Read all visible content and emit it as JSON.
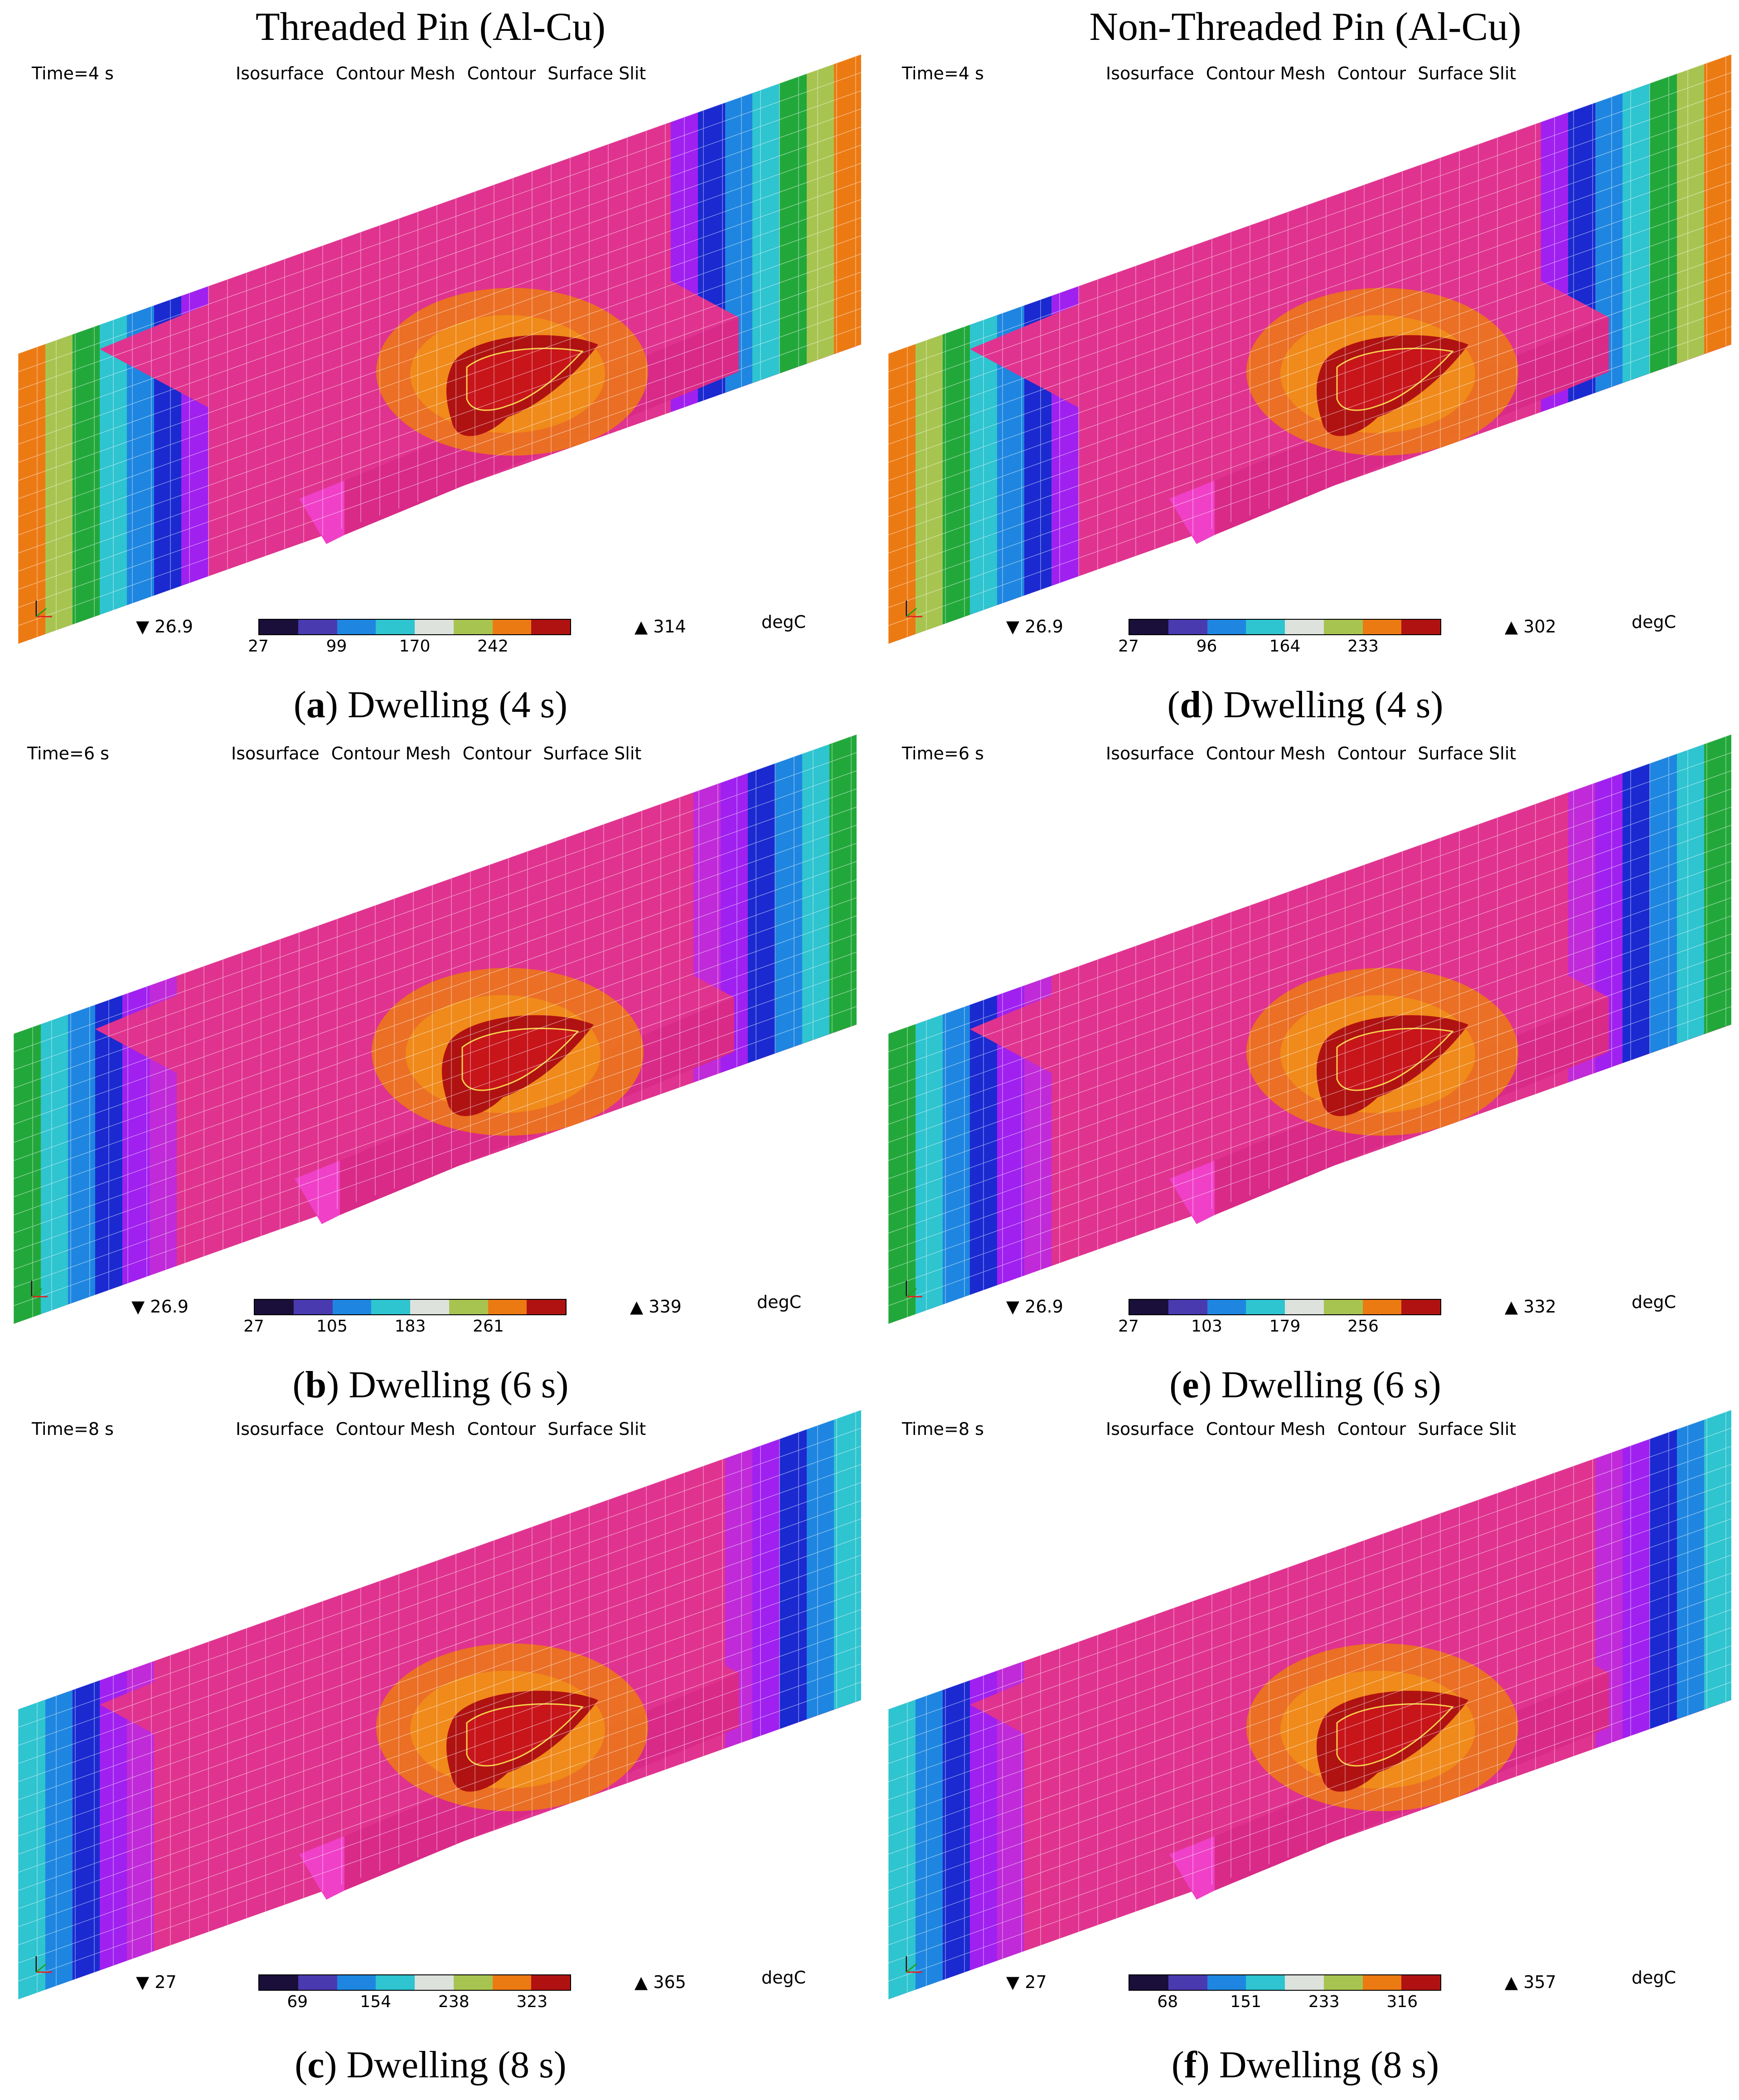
{
  "columns": {
    "left_title": "Threaded Pin (Al-Cu)",
    "right_title": "Non-Threaded Pin (Al-Cu)"
  },
  "toolbar_items": [
    "Isosurface",
    "Contour Mesh",
    "Contour",
    "Surface Slit"
  ],
  "unit": "degC",
  "legend_colors": [
    "#1a0f3a",
    "#4a3ab0",
    "#1e86e0",
    "#2ec4d0",
    "#dde2dc",
    "#a8c450",
    "#ec7a12",
    "#b01212"
  ],
  "panels": {
    "a": {
      "time": "Time=4 s",
      "min": "26.9",
      "max": "314",
      "ticks": [
        "27",
        "99",
        "170",
        "242"
      ],
      "caption_letter": "a",
      "caption_text": ") Dwelling (4 s)"
    },
    "b": {
      "time": "Time=6 s",
      "min": "26.9",
      "max": "339",
      "ticks": [
        "27",
        "105",
        "183",
        "261"
      ],
      "caption_letter": "b",
      "caption_text": ") Dwelling (6 s)"
    },
    "c": {
      "time": "Time=8 s",
      "min": "27",
      "max": "365",
      "ticks": [
        "69",
        "154",
        "238",
        "323"
      ],
      "caption_letter": "c",
      "caption_text": ") Dwelling (8 s)"
    },
    "d": {
      "time": "Time=4 s",
      "min": "26.9",
      "max": "302",
      "ticks": [
        "27",
        "96",
        "164",
        "233"
      ],
      "caption_letter": "d",
      "caption_text": ") Dwelling (4 s)"
    },
    "e": {
      "time": "Time=6 s",
      "min": "26.9",
      "max": "332",
      "ticks": [
        "27",
        "103",
        "179",
        "256"
      ],
      "caption_letter": "e",
      "caption_text": ") Dwelling (6 s)"
    },
    "f": {
      "time": "Time=8 s",
      "min": "27",
      "max": "357",
      "ticks": [
        "68",
        "151",
        "233",
        "316"
      ],
      "caption_letter": "f",
      "caption_text": ") Dwelling (8 s)"
    }
  }
}
